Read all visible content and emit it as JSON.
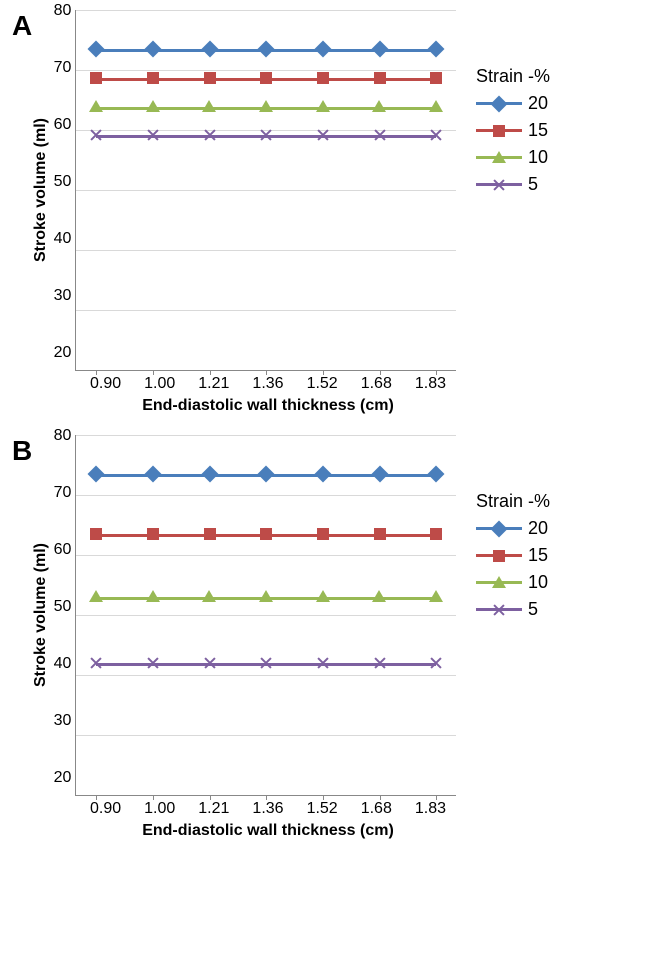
{
  "panels": [
    {
      "label": "A",
      "y_label": "Stroke volume (ml)",
      "x_label": "End-diastolic wall thickness (cm)",
      "y_min": 20,
      "y_max": 80,
      "y_step": 10,
      "x_categories": [
        "0.90",
        "1.00",
        "1.21",
        "1.36",
        "1.52",
        "1.68",
        "1.83"
      ],
      "grid_color": "#d9d9d9",
      "background_color": "#ffffff",
      "axis_color": "#888888",
      "title_fontsize": 28,
      "label_fontsize": 16,
      "tick_fontsize": 16,
      "line_width": 3,
      "legend_title": "Strain -%",
      "series": [
        {
          "name": "20",
          "value": 73.5,
          "color": "#4a7ebb",
          "marker": "diamond"
        },
        {
          "name": "15",
          "value": 68.7,
          "color": "#be4b48",
          "marker": "square"
        },
        {
          "name": "10",
          "value": 63.9,
          "color": "#98b954",
          "marker": "triangle"
        },
        {
          "name": "5",
          "value": 59.1,
          "color": "#7d60a0",
          "marker": "cross"
        }
      ]
    },
    {
      "label": "B",
      "y_label": "Stroke volume (ml)",
      "x_label": "End-diastolic wall thickness (cm)",
      "y_min": 20,
      "y_max": 80,
      "y_step": 10,
      "x_categories": [
        "0.90",
        "1.00",
        "1.21",
        "1.36",
        "1.52",
        "1.68",
        "1.83"
      ],
      "grid_color": "#d9d9d9",
      "background_color": "#ffffff",
      "axis_color": "#888888",
      "title_fontsize": 28,
      "label_fontsize": 16,
      "tick_fontsize": 16,
      "line_width": 3,
      "legend_title": "Strain -%",
      "series": [
        {
          "name": "20",
          "value": 73.5,
          "color": "#4a7ebb",
          "marker": "diamond"
        },
        {
          "name": "15",
          "value": 63.5,
          "color": "#be4b48",
          "marker": "square"
        },
        {
          "name": "10",
          "value": 53.0,
          "color": "#98b954",
          "marker": "triangle"
        },
        {
          "name": "5",
          "value": 42.0,
          "color": "#7d60a0",
          "marker": "cross"
        }
      ]
    }
  ]
}
